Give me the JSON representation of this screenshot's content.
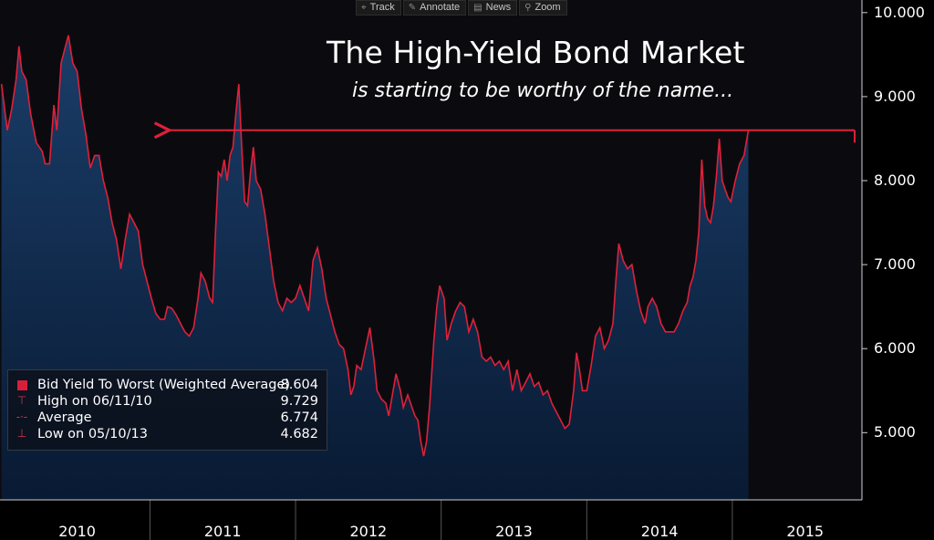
{
  "toolbar": [
    {
      "label": "Track",
      "icon": "crosshair-icon",
      "glyph": "⌖"
    },
    {
      "label": "Annotate",
      "icon": "pencil-icon",
      "glyph": "✎"
    },
    {
      "label": "News",
      "icon": "news-icon",
      "glyph": "▤"
    },
    {
      "label": "Zoom",
      "icon": "magnifier-icon",
      "glyph": "⚲"
    }
  ],
  "legend": {
    "rows": [
      {
        "label": "Bid Yield To Worst (Weighted Average)",
        "value": "8.604"
      },
      {
        "label": "High on 06/11/10",
        "value": "9.729"
      },
      {
        "label": "Average",
        "value": "6.774"
      },
      {
        "label": "Low on 05/10/13",
        "value": "4.682"
      }
    ]
  },
  "colors": {
    "line": "#e0203a",
    "area_top": "#183a64",
    "area_bottom": "#0a1a33",
    "background": "#0b0b0f",
    "arrow": "#e0203a"
  },
  "chart_data": {
    "type": "area",
    "title": "The High-Yield Bond Market",
    "subtitle": "is starting to be worthy of the name...",
    "series_name": "Bid Yield To Worst (Weighted Average)",
    "ylim": [
      4.2,
      10.15
    ],
    "xlim": [
      2009.97,
      2015.89
    ],
    "yticks": [
      5.0,
      6.0,
      7.0,
      8.0,
      9.0,
      10.0
    ],
    "ytick_labels": [
      "5.000",
      "6.000",
      "7.000",
      "8.000",
      "9.000",
      "10.000"
    ],
    "xtick_labels": [
      "2010",
      "2011",
      "2012",
      "2013",
      "2014",
      "2015"
    ],
    "xtick_positions": [
      2010.5,
      2011.5,
      2012.5,
      2013.5,
      2014.5,
      2015.5
    ],
    "x_boundaries": [
      2011.0,
      2012.0,
      2013.0,
      2014.0,
      2015.0
    ],
    "last_value": 8.604,
    "high": {
      "date": "06/11/10",
      "value": 9.729
    },
    "average": 6.774,
    "low": {
      "date": "05/10/13",
      "value": 4.682
    },
    "annotation_arrow": {
      "from_x": 2015.84,
      "to_x": 2011.12,
      "y": 8.6
    },
    "points": [
      [
        2009.98,
        9.15
      ],
      [
        2010.02,
        8.6
      ],
      [
        2010.05,
        8.85
      ],
      [
        2010.08,
        9.2
      ],
      [
        2010.1,
        9.6
      ],
      [
        2010.12,
        9.3
      ],
      [
        2010.15,
        9.2
      ],
      [
        2010.18,
        8.8
      ],
      [
        2010.22,
        8.45
      ],
      [
        2010.26,
        8.35
      ],
      [
        2010.28,
        8.2
      ],
      [
        2010.31,
        8.2
      ],
      [
        2010.34,
        8.9
      ],
      [
        2010.36,
        8.6
      ],
      [
        2010.39,
        9.4
      ],
      [
        2010.42,
        9.6
      ],
      [
        2010.44,
        9.73
      ],
      [
        2010.47,
        9.4
      ],
      [
        2010.5,
        9.3
      ],
      [
        2010.53,
        8.85
      ],
      [
        2010.56,
        8.55
      ],
      [
        2010.59,
        8.15
      ],
      [
        2010.62,
        8.3
      ],
      [
        2010.65,
        8.3
      ],
      [
        2010.68,
        8.0
      ],
      [
        2010.71,
        7.8
      ],
      [
        2010.74,
        7.5
      ],
      [
        2010.77,
        7.3
      ],
      [
        2010.8,
        6.95
      ],
      [
        2010.83,
        7.3
      ],
      [
        2010.86,
        7.6
      ],
      [
        2010.89,
        7.5
      ],
      [
        2010.92,
        7.4
      ],
      [
        2010.95,
        7.0
      ],
      [
        2010.98,
        6.8
      ],
      [
        2011.01,
        6.6
      ],
      [
        2011.04,
        6.42
      ],
      [
        2011.07,
        6.35
      ],
      [
        2011.1,
        6.35
      ],
      [
        2011.12,
        6.5
      ],
      [
        2011.15,
        6.48
      ],
      [
        2011.18,
        6.4
      ],
      [
        2011.21,
        6.3
      ],
      [
        2011.24,
        6.2
      ],
      [
        2011.27,
        6.15
      ],
      [
        2011.3,
        6.25
      ],
      [
        2011.33,
        6.6
      ],
      [
        2011.35,
        6.9
      ],
      [
        2011.38,
        6.8
      ],
      [
        2011.41,
        6.6
      ],
      [
        2011.43,
        6.55
      ],
      [
        2011.45,
        7.4
      ],
      [
        2011.47,
        8.1
      ],
      [
        2011.49,
        8.05
      ],
      [
        2011.51,
        8.25
      ],
      [
        2011.53,
        8.0
      ],
      [
        2011.55,
        8.3
      ],
      [
        2011.57,
        8.4
      ],
      [
        2011.59,
        8.8
      ],
      [
        2011.61,
        9.15
      ],
      [
        2011.63,
        8.4
      ],
      [
        2011.65,
        7.75
      ],
      [
        2011.67,
        7.7
      ],
      [
        2011.69,
        8.1
      ],
      [
        2011.71,
        8.4
      ],
      [
        2011.73,
        8.0
      ],
      [
        2011.76,
        7.9
      ],
      [
        2011.79,
        7.6
      ],
      [
        2011.82,
        7.2
      ],
      [
        2011.85,
        6.8
      ],
      [
        2011.88,
        6.55
      ],
      [
        2011.91,
        6.45
      ],
      [
        2011.94,
        6.6
      ],
      [
        2011.97,
        6.55
      ],
      [
        2012.0,
        6.6
      ],
      [
        2012.03,
        6.75
      ],
      [
        2012.06,
        6.6
      ],
      [
        2012.09,
        6.45
      ],
      [
        2012.12,
        7.05
      ],
      [
        2012.15,
        7.2
      ],
      [
        2012.18,
        6.95
      ],
      [
        2012.21,
        6.6
      ],
      [
        2012.24,
        6.4
      ],
      [
        2012.27,
        6.2
      ],
      [
        2012.3,
        6.05
      ],
      [
        2012.33,
        6.0
      ],
      [
        2012.36,
        5.75
      ],
      [
        2012.38,
        5.45
      ],
      [
        2012.4,
        5.55
      ],
      [
        2012.42,
        5.8
      ],
      [
        2012.45,
        5.75
      ],
      [
        2012.48,
        6.0
      ],
      [
        2012.51,
        6.25
      ],
      [
        2012.54,
        5.85
      ],
      [
        2012.56,
        5.5
      ],
      [
        2012.59,
        5.4
      ],
      [
        2012.62,
        5.35
      ],
      [
        2012.64,
        5.2
      ],
      [
        2012.67,
        5.5
      ],
      [
        2012.69,
        5.7
      ],
      [
        2012.72,
        5.5
      ],
      [
        2012.74,
        5.3
      ],
      [
        2012.77,
        5.45
      ],
      [
        2012.8,
        5.3
      ],
      [
        2012.82,
        5.2
      ],
      [
        2012.84,
        5.15
      ],
      [
        2012.86,
        4.9
      ],
      [
        2012.88,
        4.72
      ],
      [
        2012.9,
        4.9
      ],
      [
        2012.92,
        5.3
      ],
      [
        2012.95,
        6.1
      ],
      [
        2012.97,
        6.5
      ],
      [
        2012.99,
        6.75
      ],
      [
        2013.02,
        6.6
      ],
      [
        2013.04,
        6.1
      ],
      [
        2013.07,
        6.3
      ],
      [
        2013.1,
        6.45
      ],
      [
        2013.13,
        6.55
      ],
      [
        2013.16,
        6.5
      ],
      [
        2013.19,
        6.2
      ],
      [
        2013.22,
        6.35
      ],
      [
        2013.25,
        6.2
      ],
      [
        2013.28,
        5.9
      ],
      [
        2013.31,
        5.85
      ],
      [
        2013.34,
        5.9
      ],
      [
        2013.37,
        5.8
      ],
      [
        2013.4,
        5.85
      ],
      [
        2013.43,
        5.75
      ],
      [
        2013.46,
        5.85
      ],
      [
        2013.49,
        5.5
      ],
      [
        2013.52,
        5.75
      ],
      [
        2013.55,
        5.5
      ],
      [
        2013.58,
        5.6
      ],
      [
        2013.61,
        5.7
      ],
      [
        2013.64,
        5.55
      ],
      [
        2013.67,
        5.6
      ],
      [
        2013.7,
        5.45
      ],
      [
        2013.73,
        5.5
      ],
      [
        2013.76,
        5.35
      ],
      [
        2013.79,
        5.25
      ],
      [
        2013.82,
        5.15
      ],
      [
        2013.85,
        5.05
      ],
      [
        2013.88,
        5.1
      ],
      [
        2013.91,
        5.5
      ],
      [
        2013.93,
        5.95
      ],
      [
        2013.95,
        5.75
      ],
      [
        2013.97,
        5.5
      ],
      [
        2014.0,
        5.5
      ],
      [
        2014.03,
        5.8
      ],
      [
        2014.06,
        6.15
      ],
      [
        2014.09,
        6.25
      ],
      [
        2014.12,
        6.0
      ],
      [
        2014.15,
        6.1
      ],
      [
        2014.18,
        6.3
      ],
      [
        2014.2,
        6.8
      ],
      [
        2014.22,
        7.25
      ],
      [
        2014.25,
        7.05
      ],
      [
        2014.28,
        6.95
      ],
      [
        2014.31,
        7.0
      ],
      [
        2014.34,
        6.7
      ],
      [
        2014.37,
        6.45
      ],
      [
        2014.4,
        6.3
      ],
      [
        2014.42,
        6.5
      ],
      [
        2014.45,
        6.6
      ],
      [
        2014.48,
        6.5
      ],
      [
        2014.51,
        6.3
      ],
      [
        2014.54,
        6.2
      ],
      [
        2014.57,
        6.2
      ],
      [
        2014.6,
        6.2
      ],
      [
        2014.63,
        6.3
      ],
      [
        2014.66,
        6.45
      ],
      [
        2014.69,
        6.55
      ],
      [
        2014.71,
        6.75
      ],
      [
        2014.73,
        6.85
      ],
      [
        2014.75,
        7.05
      ],
      [
        2014.77,
        7.4
      ],
      [
        2014.79,
        8.25
      ],
      [
        2014.81,
        7.7
      ],
      [
        2014.83,
        7.55
      ],
      [
        2014.85,
        7.5
      ],
      [
        2014.87,
        7.7
      ],
      [
        2014.89,
        8.05
      ],
      [
        2014.91,
        8.5
      ],
      [
        2014.93,
        8.0
      ],
      [
        2014.95,
        7.9
      ],
      [
        2014.97,
        7.8
      ],
      [
        2014.99,
        7.75
      ],
      [
        2015.02,
        8.0
      ],
      [
        2015.05,
        8.2
      ],
      [
        2015.08,
        8.3
      ],
      [
        2015.11,
        8.6
      ]
    ]
  }
}
